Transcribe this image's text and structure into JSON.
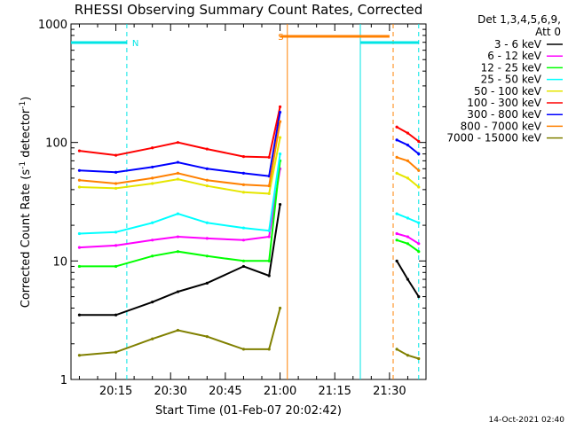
{
  "chart_data": {
    "type": "line",
    "title": "RHESSI Observing Summary Count Rates, Corrected",
    "xlabel": "Start Time (01-Feb-07 20:02:42)",
    "ylabel_main": "Corrected Count Rate (s",
    "ylabel_sup1": "-1",
    "ylabel_mid": " detector",
    "ylabel_sup2": "-1",
    "ylabel_end": ")",
    "y_scale": "log",
    "ylim": [
      1,
      1000
    ],
    "xlim": [
      "20:02:42",
      "21:40:00"
    ],
    "x_ticks": [
      "20:15",
      "20:30",
      "20:45",
      "21:00",
      "21:15",
      "21:30"
    ],
    "y_ticks": [
      "1",
      "10",
      "100",
      "1000"
    ],
    "legend_header": [
      "Det 1,3,4,5,6,9,",
      "Att 0"
    ],
    "legend_position": "right",
    "footer_date": "14-Oct-2021 02:40",
    "flags": [
      {
        "label": "N",
        "color": "#00e5e5",
        "start": "20:02:42",
        "end": "20:18:00"
      },
      {
        "label": "S",
        "color": "#ff8000",
        "start": "21:00:00",
        "end": "21:30:00"
      },
      {
        "label": "",
        "color": "#00e5e5",
        "start": "21:22:00",
        "end": "21:38:00"
      }
    ],
    "vlines": [
      {
        "time": "20:18:00",
        "color": "#00e5e5",
        "dashed": true
      },
      {
        "time": "21:02:00",
        "color": "#ff8000",
        "dashed": false
      },
      {
        "time": "21:22:00",
        "color": "#00e5e5",
        "dashed": false
      },
      {
        "time": "21:31:00",
        "color": "#ff8000",
        "dashed": true
      },
      {
        "time": "21:38:00",
        "color": "#00e5e5",
        "dashed": true
      }
    ],
    "x": [
      "20:05",
      "20:15",
      "20:25",
      "20:32",
      "20:40",
      "20:50",
      "20:57",
      "21:00",
      "21:02",
      "21:32",
      "21:35",
      "21:38"
    ],
    "series": [
      {
        "name": "3 - 6 keV",
        "color": "#000000",
        "values": [
          3.5,
          3.5,
          4.5,
          5.5,
          6.5,
          9,
          7.5,
          30,
          null,
          10,
          7,
          5
        ]
      },
      {
        "name": "6 - 12 keV",
        "color": "#ff00ff",
        "values": [
          13,
          13.5,
          15,
          16,
          15.5,
          15,
          16,
          60,
          null,
          17,
          16,
          14
        ]
      },
      {
        "name": "12 - 25 keV",
        "color": "#00ff00",
        "values": [
          9,
          9,
          11,
          12,
          11,
          10,
          10,
          70,
          null,
          15,
          14,
          12
        ]
      },
      {
        "name": "25 - 50 keV",
        "color": "#00ffff",
        "values": [
          17,
          17.5,
          21,
          25,
          21,
          19,
          18,
          80,
          null,
          25,
          23,
          21
        ]
      },
      {
        "name": "50 - 100 keV",
        "color": "#e6e600",
        "values": [
          42,
          41,
          45,
          49,
          43,
          38,
          37,
          110,
          null,
          55,
          50,
          42
        ]
      },
      {
        "name": "100 - 300 keV",
        "color": "#ff0000",
        "values": [
          85,
          78,
          90,
          100,
          88,
          76,
          75,
          200,
          null,
          135,
          120,
          102
        ]
      },
      {
        "name": "300 - 800 keV",
        "color": "#0000ff",
        "values": [
          58,
          56,
          62,
          68,
          60,
          55,
          52,
          180,
          null,
          105,
          95,
          80
        ]
      },
      {
        "name": "800 - 7000 keV",
        "color": "#ff8000",
        "values": [
          48,
          45,
          50,
          55,
          48,
          44,
          43,
          150,
          null,
          75,
          70,
          58
        ]
      },
      {
        "name": "7000 - 15000 keV",
        "color": "#808000",
        "values": [
          1.6,
          1.7,
          2.2,
          2.6,
          2.3,
          1.8,
          1.8,
          4,
          null,
          1.8,
          1.6,
          1.5
        ]
      }
    ]
  }
}
